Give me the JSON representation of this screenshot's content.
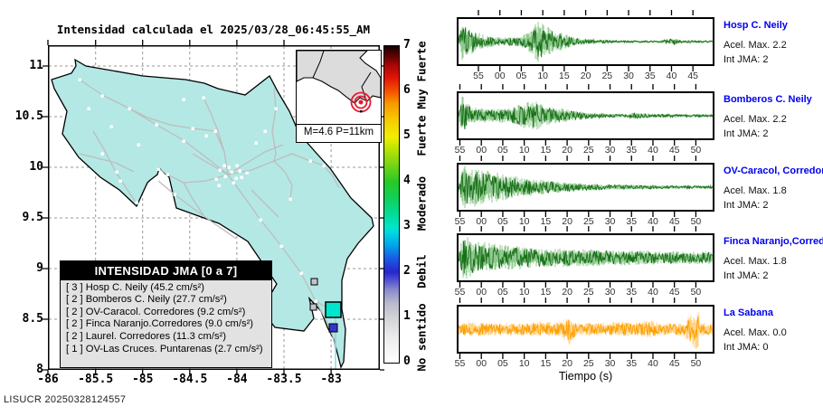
{
  "title": "Intensidad calculada el 2025/03/28_06:45:55_AM",
  "watermark": "LISUCR 20250328124557",
  "map": {
    "lat_ticks": [
      "11",
      "10.5",
      "10",
      "9.5",
      "9",
      "8.5",
      "8"
    ],
    "lon_ticks": [
      "-86",
      "-85.5",
      "-85",
      "-84.5",
      "-84",
      "-83.5",
      "-83"
    ],
    "inset_label": "M=4.6 P=11km",
    "fill_color": "#b4e8e4",
    "road_color": "#bdbdbd",
    "legend": {
      "title": "INTENSIDAD JMA [0 a 7]",
      "entries": [
        "[ 3 ]  Hosp C. Neily (45.2 cm/s²)",
        "[ 2 ]  Bomberos C. Neily (27.7 cm/s²)",
        "[ 2 ]  OV-Caracol. Corredores (9.2 cm/s²)",
        "[ 2 ]  Finca Naranjo.Corredores (9.0 cm/s²)",
        "[ 2 ]  Laurel. Corredores (11.3 cm/s²)",
        "[ 1 ]  OV-Las Cruces. Puntarenas (2.7 cm/s²)"
      ]
    },
    "station_markers": [
      {
        "color": "#c4c4d0",
        "size": 7
      },
      {
        "color": "#c4c4d0",
        "size": 7
      },
      {
        "color": "#00e6cc",
        "size": 17
      },
      {
        "color": "#3434cc",
        "size": 9
      }
    ]
  },
  "colorbar": {
    "ticks": [
      "7",
      "6",
      "5",
      "4",
      "3",
      "2",
      "1",
      "0"
    ],
    "level_labels": [
      {
        "text": "Muy Fuerte",
        "value": 6.35
      },
      {
        "text": "Fuerte",
        "value": 5.0
      },
      {
        "text": "Moderado",
        "value": 3.5
      },
      {
        "text": "Debil",
        "value": 2.0
      },
      {
        "text": "No sentido",
        "value": 0.55
      }
    ],
    "gradient": [
      [
        0,
        "#ffffff"
      ],
      [
        0.08,
        "#ececec"
      ],
      [
        0.143,
        "#d2d2d6"
      ],
      [
        0.19,
        "#b8b8cc"
      ],
      [
        0.23,
        "#8a8acc"
      ],
      [
        0.26,
        "#5252d4"
      ],
      [
        0.286,
        "#2626cc"
      ],
      [
        0.33,
        "#1b5ce4"
      ],
      [
        0.37,
        "#00a2ec"
      ],
      [
        0.41,
        "#00d6e2"
      ],
      [
        0.429,
        "#00e6c8"
      ],
      [
        0.47,
        "#00dc96"
      ],
      [
        0.52,
        "#12d058"
      ],
      [
        0.571,
        "#28c828"
      ],
      [
        0.63,
        "#7ed614"
      ],
      [
        0.68,
        "#c0e600"
      ],
      [
        0.714,
        "#f2ee00"
      ],
      [
        0.77,
        "#f6c800"
      ],
      [
        0.82,
        "#f79700"
      ],
      [
        0.857,
        "#f55200"
      ],
      [
        0.9,
        "#e01505"
      ],
      [
        0.94,
        "#a80606"
      ],
      [
        0.97,
        "#5c0202"
      ],
      [
        1,
        "#140000"
      ]
    ]
  },
  "seismograms": {
    "xlabel": "Tiempo (s)",
    "traces": [
      {
        "name": "Hosp C. Neily",
        "acel": "Acel. Max. 2.2",
        "jma": "Int JMA: 2",
        "color_main": "#1a701a",
        "color_halo": "#8fc98f",
        "ticks": [
          "55",
          "00",
          "05",
          "10",
          "15",
          "20",
          "25",
          "30",
          "35",
          "40",
          "45"
        ],
        "envelope": [
          [
            0,
            0.12
          ],
          [
            0.012,
            0.95
          ],
          [
            0.05,
            0.62
          ],
          [
            0.1,
            0.3
          ],
          [
            0.17,
            0.2
          ],
          [
            0.24,
            0.22
          ],
          [
            0.28,
            0.5
          ],
          [
            0.31,
            1.0
          ],
          [
            0.345,
            0.72
          ],
          [
            0.4,
            0.42
          ],
          [
            0.46,
            0.18
          ],
          [
            0.55,
            0.09
          ],
          [
            0.65,
            0.06
          ],
          [
            0.78,
            0.05
          ],
          [
            0.85,
            0.16
          ],
          [
            0.88,
            0.07
          ],
          [
            1,
            0.05
          ]
        ]
      },
      {
        "name": "Bomberos C. Neily",
        "acel": "Acel. Max. 2.2",
        "jma": "Int JMA: 2",
        "color_main": "#1a701a",
        "color_halo": "#8fc98f",
        "ticks": [
          "55",
          "00",
          "05",
          "10",
          "15",
          "20",
          "25",
          "30",
          "35",
          "40",
          "45",
          "50"
        ],
        "envelope": [
          [
            0,
            0.1
          ],
          [
            0.015,
            1.0
          ],
          [
            0.05,
            0.4
          ],
          [
            0.12,
            0.3
          ],
          [
            0.2,
            0.33
          ],
          [
            0.26,
            0.62
          ],
          [
            0.3,
            0.72
          ],
          [
            0.34,
            0.45
          ],
          [
            0.42,
            0.3
          ],
          [
            0.5,
            0.17
          ],
          [
            0.58,
            0.1
          ],
          [
            0.65,
            0.08
          ],
          [
            0.7,
            0.16
          ],
          [
            0.76,
            0.09
          ],
          [
            0.88,
            0.07
          ],
          [
            1,
            0.06
          ]
        ]
      },
      {
        "name": "OV-Caracol, Corredore",
        "acel": "Acel. Max. 1.8",
        "jma": "Int JMA: 2",
        "color_main": "#1a701a",
        "color_halo": "#8fc98f",
        "ticks": [
          "55",
          "00",
          "05",
          "10",
          "15",
          "20",
          "25",
          "30",
          "35",
          "40",
          "45",
          "50"
        ],
        "envelope": [
          [
            0,
            0.25
          ],
          [
            0.02,
            1.0
          ],
          [
            0.06,
            0.9
          ],
          [
            0.12,
            0.75
          ],
          [
            0.2,
            0.55
          ],
          [
            0.28,
            0.42
          ],
          [
            0.36,
            0.3
          ],
          [
            0.45,
            0.2
          ],
          [
            0.55,
            0.14
          ],
          [
            0.7,
            0.1
          ],
          [
            0.85,
            0.08
          ],
          [
            1,
            0.07
          ]
        ]
      },
      {
        "name": "Finca Naranjo,Corredor",
        "acel": "Acel. Max. 1.8",
        "jma": "Int JMA: 2",
        "color_main": "#1a701a",
        "color_halo": "#8fc98f",
        "ticks": [
          "55",
          "00",
          "05",
          "10",
          "15",
          "20",
          "25",
          "30",
          "35",
          "40",
          "45",
          "50"
        ],
        "envelope": [
          [
            0,
            0.3
          ],
          [
            0.02,
            1.0
          ],
          [
            0.08,
            0.78
          ],
          [
            0.16,
            0.62
          ],
          [
            0.25,
            0.52
          ],
          [
            0.35,
            0.45
          ],
          [
            0.45,
            0.42
          ],
          [
            0.55,
            0.38
          ],
          [
            0.65,
            0.36
          ],
          [
            0.75,
            0.33
          ],
          [
            0.85,
            0.3
          ],
          [
            1,
            0.3
          ]
        ]
      },
      {
        "name": "La Sabana",
        "acel": "Acel. Max. 0.0",
        "jma": "Int JMA: 0",
        "color_main": "#ff9f00",
        "color_halo": "#ffd48a",
        "ticks": [
          "55",
          "00",
          "05",
          "10",
          "15",
          "20",
          "25",
          "30",
          "35",
          "40",
          "45",
          "50"
        ],
        "envelope": [
          [
            0,
            0.3
          ],
          [
            0.1,
            0.33
          ],
          [
            0.2,
            0.3
          ],
          [
            0.3,
            0.34
          ],
          [
            0.4,
            0.32
          ],
          [
            0.44,
            0.75
          ],
          [
            0.46,
            0.32
          ],
          [
            0.55,
            0.3
          ],
          [
            0.62,
            0.34
          ],
          [
            0.7,
            0.32
          ],
          [
            0.76,
            0.42
          ],
          [
            0.8,
            0.3
          ],
          [
            0.88,
            0.3
          ],
          [
            0.94,
            1.0
          ],
          [
            0.955,
            0.3
          ],
          [
            1,
            0.3
          ]
        ]
      }
    ]
  },
  "chart_data": {
    "type": "line",
    "title": "Intensidad calculada el 2025/03/28_06:45:55_AM",
    "event": {
      "magnitude_label": "M=4.6",
      "depth_label": "P=11km",
      "datetime": "2025/03/28 06:45:55 AM"
    },
    "map_axes": {
      "xlabel_ticks": [
        -86,
        -85.5,
        -85,
        -84.5,
        -84,
        -83.5,
        -83
      ],
      "ylabel_ticks": [
        8,
        8.5,
        9,
        9.5,
        10,
        10.5,
        11
      ],
      "intensity_scale_range": [
        0,
        7
      ],
      "intensity_scale_labels": [
        "No sentido",
        "Debil",
        "Moderado",
        "Fuerte",
        "Muy Fuerte"
      ]
    },
    "stations": [
      {
        "name": "Hosp C. Neily",
        "jma_intensity": 3,
        "accel_cm_s2": 45.2
      },
      {
        "name": "Bomberos C. Neily",
        "jma_intensity": 2,
        "accel_cm_s2": 27.7
      },
      {
        "name": "OV-Caracol. Corredores",
        "jma_intensity": 2,
        "accel_cm_s2": 9.2
      },
      {
        "name": "Finca Naranjo. Corredores",
        "jma_intensity": 2,
        "accel_cm_s2": 9.0
      },
      {
        "name": "Laurel. Corredores",
        "jma_intensity": 2,
        "accel_cm_s2": 11.3
      },
      {
        "name": "OV-Las Cruces. Puntarenas",
        "jma_intensity": 1,
        "accel_cm_s2": 2.7
      }
    ],
    "series": [
      {
        "name": "Hosp C. Neily",
        "acel_max": 2.2,
        "int_jma": 2,
        "time_ticks_s": [
          "55",
          "00",
          "05",
          "10",
          "15",
          "20",
          "25",
          "30",
          "35",
          "40",
          "45"
        ]
      },
      {
        "name": "Bomberos C. Neily",
        "acel_max": 2.2,
        "int_jma": 2,
        "time_ticks_s": [
          "55",
          "00",
          "05",
          "10",
          "15",
          "20",
          "25",
          "30",
          "35",
          "40",
          "45",
          "50"
        ]
      },
      {
        "name": "OV-Caracol, Corredore",
        "acel_max": 1.8,
        "int_jma": 2,
        "time_ticks_s": [
          "55",
          "00",
          "05",
          "10",
          "15",
          "20",
          "25",
          "30",
          "35",
          "40",
          "45",
          "50"
        ]
      },
      {
        "name": "Finca Naranjo,Corredor",
        "acel_max": 1.8,
        "int_jma": 2,
        "time_ticks_s": [
          "55",
          "00",
          "05",
          "10",
          "15",
          "20",
          "25",
          "30",
          "35",
          "40",
          "45",
          "50"
        ]
      },
      {
        "name": "La Sabana",
        "acel_max": 0.0,
        "int_jma": 0,
        "time_ticks_s": [
          "55",
          "00",
          "05",
          "10",
          "15",
          "20",
          "25",
          "30",
          "35",
          "40",
          "45",
          "50"
        ]
      }
    ],
    "xlabel": "Tiempo (s)"
  }
}
